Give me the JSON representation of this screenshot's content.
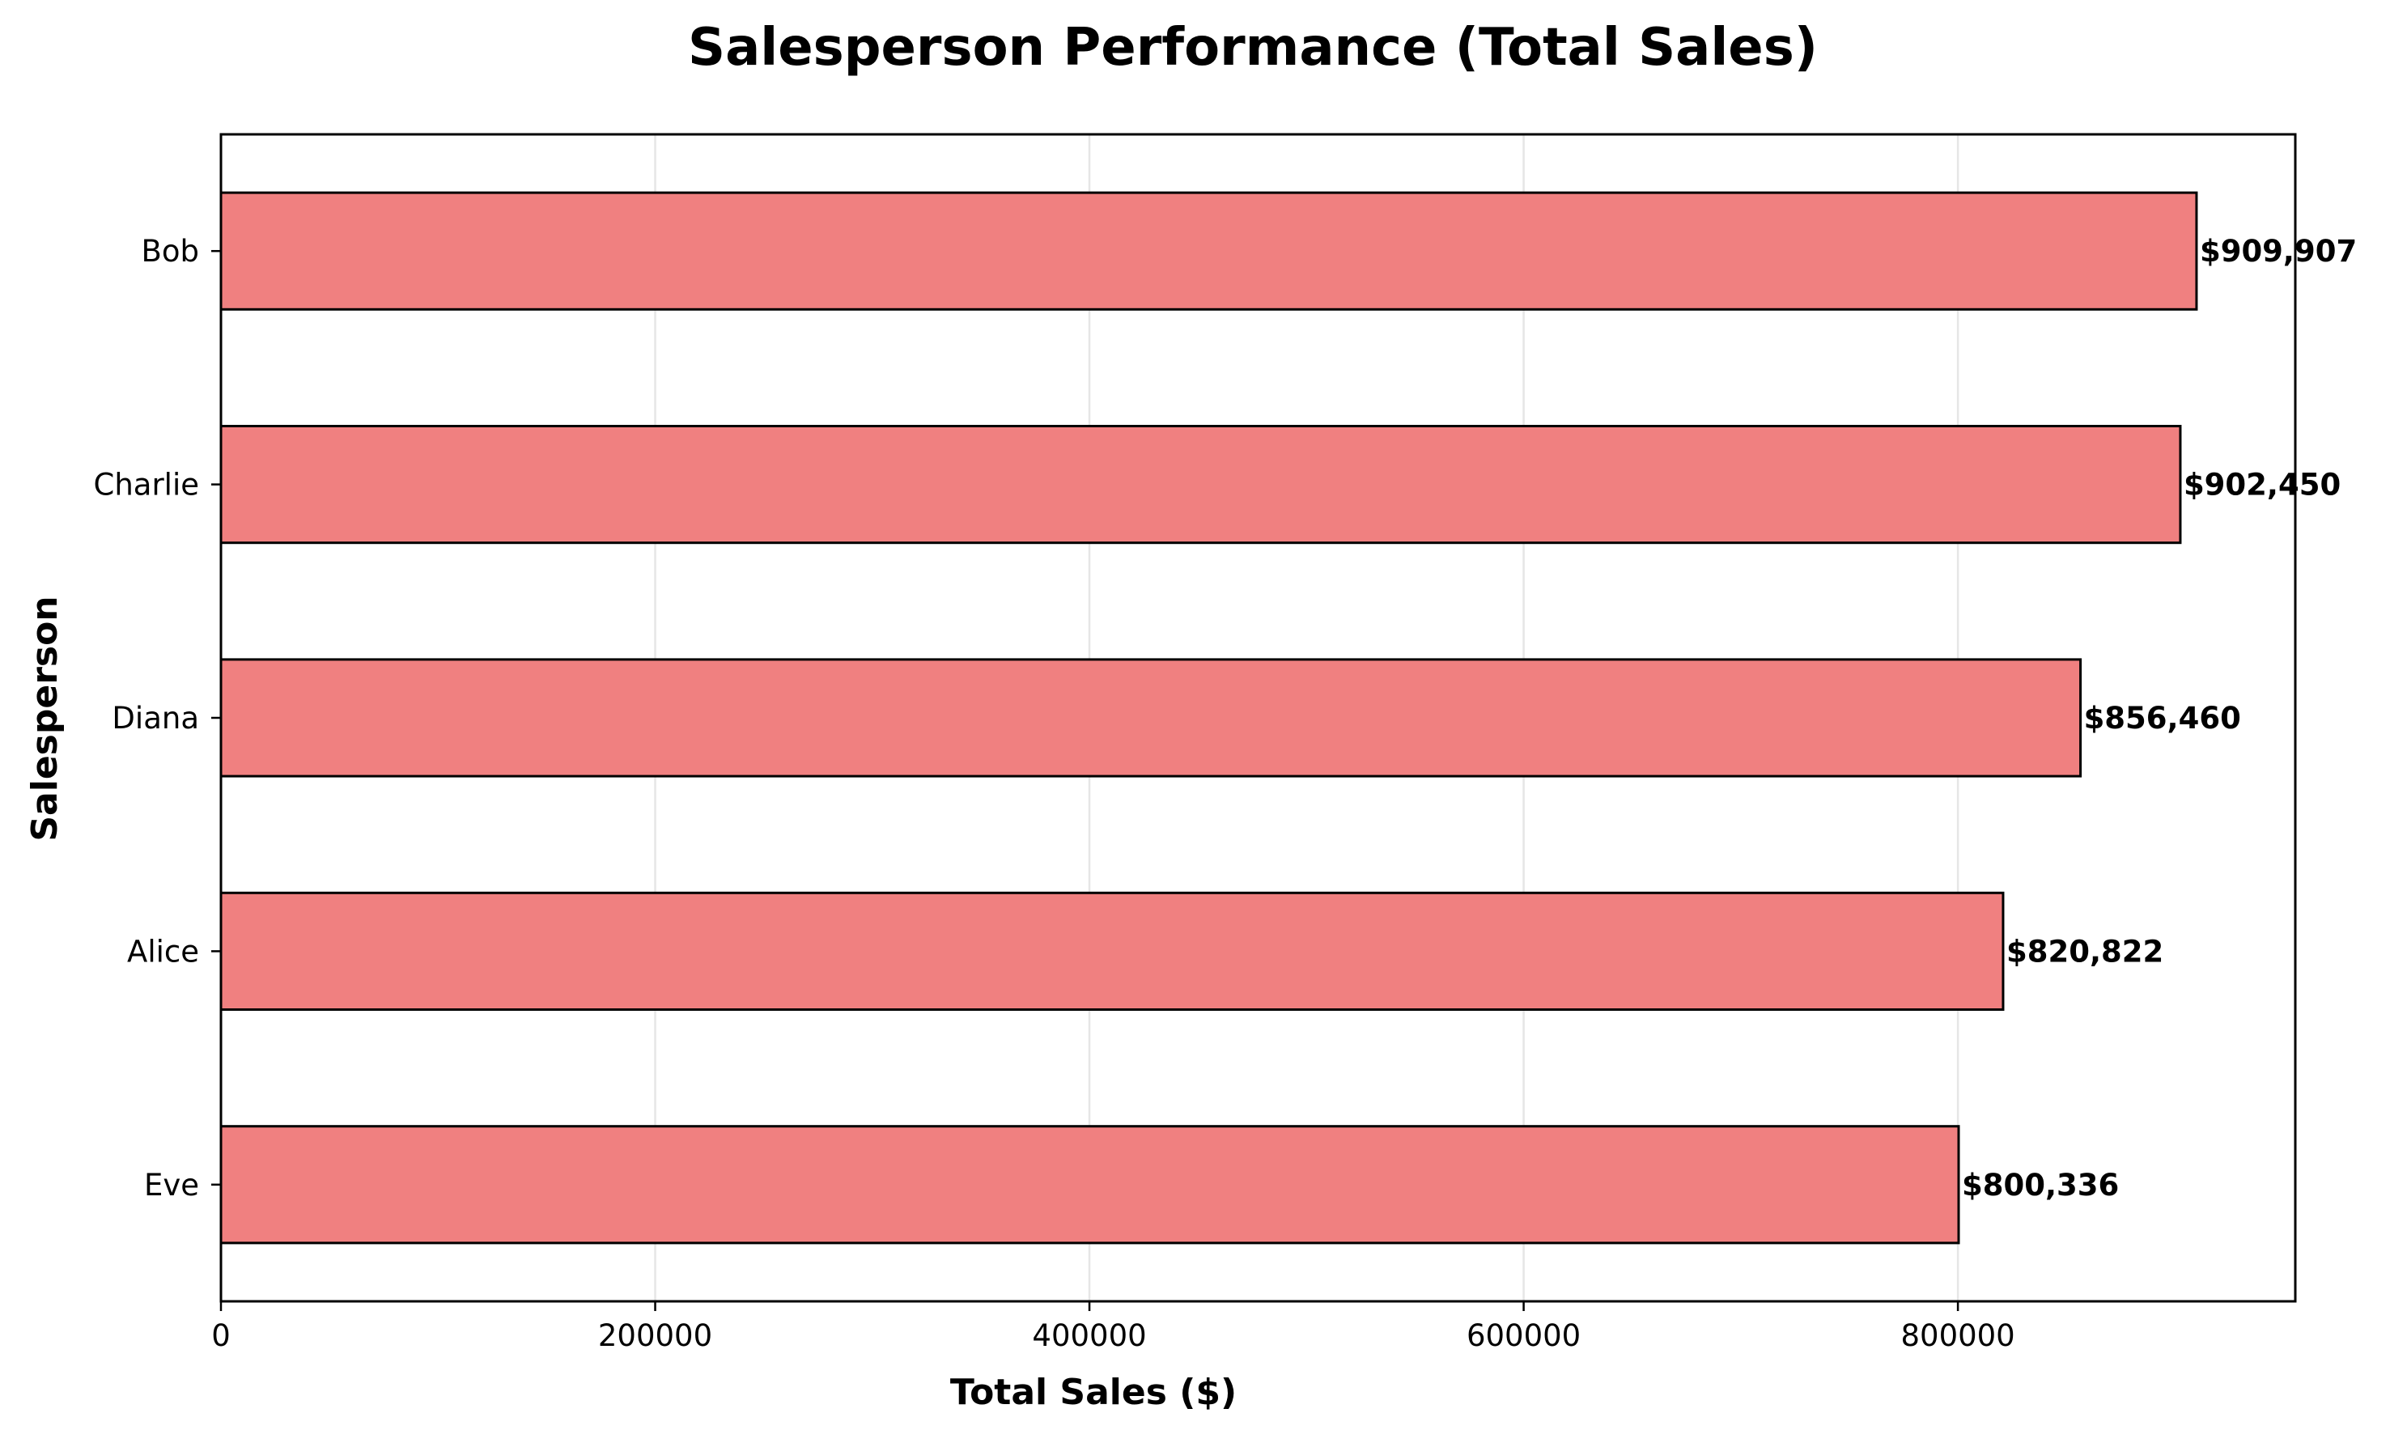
{
  "chart_data": {
    "type": "bar",
    "orientation": "horizontal",
    "title": "Salesperson Performance (Total Sales)",
    "xlabel": "Total Sales ($)",
    "ylabel": "Salesperson",
    "categories": [
      "Bob",
      "Charlie",
      "Diana",
      "Alice",
      "Eve"
    ],
    "values": [
      909907,
      902450,
      856460,
      820822,
      800336
    ],
    "data_labels": [
      "$909,907",
      "$902,450",
      "$856,460",
      "$820,822",
      "$800,336"
    ],
    "xlim": [
      0,
      955402
    ],
    "xticks": [
      0,
      200000,
      400000,
      600000,
      800000
    ],
    "xtick_labels": [
      "0",
      "200000",
      "400000",
      "600000",
      "800000"
    ],
    "grid": "x-axis vertical lines",
    "bar_color": "#f08080",
    "bar_edge_color": "#000000",
    "grid_color": "#e6e6e6"
  }
}
